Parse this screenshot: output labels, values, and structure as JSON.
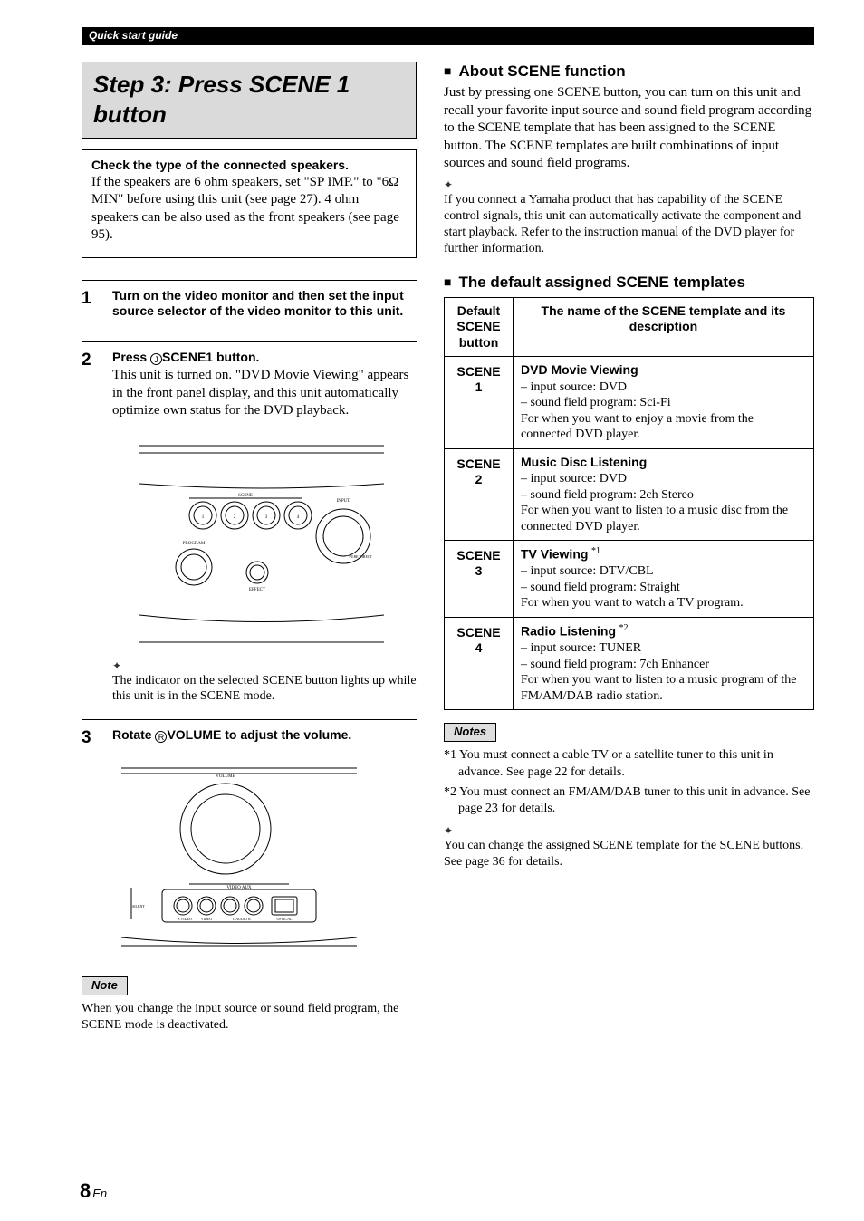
{
  "page": {
    "section_header": "Quick start guide",
    "number": "8",
    "lang": "En"
  },
  "left": {
    "step_title": "Step 3: Press SCENE 1 button",
    "callout": {
      "title": "Check the type of the connected speakers.",
      "body": "If the speakers are 6 ohm speakers, set \"SP IMP.\" to \"6Ω MIN\" before using this unit (see page 27). 4 ohm speakers can be also used as the front speakers (see page 95)."
    },
    "steps": [
      {
        "n": "1",
        "head": "Turn on the video monitor and then set the input source selector of the video monitor to this unit."
      },
      {
        "n": "2",
        "head_pre": "Press ",
        "head_circ": "J",
        "head_bold": "SCENE1",
        "head_post": " button.",
        "body": "This unit is turned on. \"DVD Movie Viewing\" appears in the front panel display, and this unit automatically optimize own status for the DVD playback."
      },
      {
        "n": "3",
        "head_pre": "Rotate ",
        "head_circ": "R",
        "head_bold": "VOLUME",
        "head_post": " to adjust the volume."
      }
    ],
    "hint": "The indicator on the selected SCENE button lights up while this unit is in the SCENE mode.",
    "note_label": "Note",
    "note": "When you change the input source or sound field program, the SCENE mode is deactivated."
  },
  "right": {
    "about_title": "About SCENE function",
    "about_para": "Just by pressing one SCENE button, you can turn on this unit and recall your favorite input source and sound field program according to the SCENE template that has been assigned to the SCENE button. The SCENE templates are built combinations of input sources and sound field programs.",
    "about_hint": "If you connect a Yamaha product that has capability of the SCENE control signals, this unit can automatically activate the component and start playback. Refer to the instruction manual of the DVD player for further information.",
    "templates_title": "The default assigned SCENE templates",
    "table": {
      "th1": "Default SCENE button",
      "th2": "The name of the SCENE template and its description",
      "rows": [
        {
          "c1a": "SCENE",
          "c1b": "1",
          "title": "DVD Movie Viewing",
          "sup": "",
          "lines": [
            "– input source: DVD",
            "– sound field program: Sci-Fi",
            "For when you want to enjoy a movie from the connected DVD player."
          ]
        },
        {
          "c1a": "SCENE",
          "c1b": "2",
          "title": "Music Disc Listening",
          "sup": "",
          "lines": [
            "– input source: DVD",
            "– sound field program: 2ch Stereo",
            "For when you want to listen to a music disc from the connected DVD player."
          ]
        },
        {
          "c1a": "SCENE",
          "c1b": "3",
          "title": "TV Viewing",
          "sup": "*1",
          "lines": [
            "– input source: DTV/CBL",
            "– sound field program: Straight",
            "For when you want to watch a TV program."
          ]
        },
        {
          "c1a": "SCENE",
          "c1b": "4",
          "title": "Radio Listening",
          "sup": "*2",
          "lines": [
            "– input source: TUNER",
            "– sound field program: 7ch Enhancer",
            "For when you want to listen to a music program of the FM/AM/DAB radio station."
          ]
        }
      ]
    },
    "notes_label": "Notes",
    "footnotes": [
      "*1 You must connect a cable TV or a satellite tuner to this unit in advance. See page 22 for details.",
      "*2 You must connect an FM/AM/DAB tuner to this unit in advance. See page 23 for details."
    ],
    "hint2": "You can change the assigned SCENE template for the SCENE buttons. See page 36 for details."
  }
}
